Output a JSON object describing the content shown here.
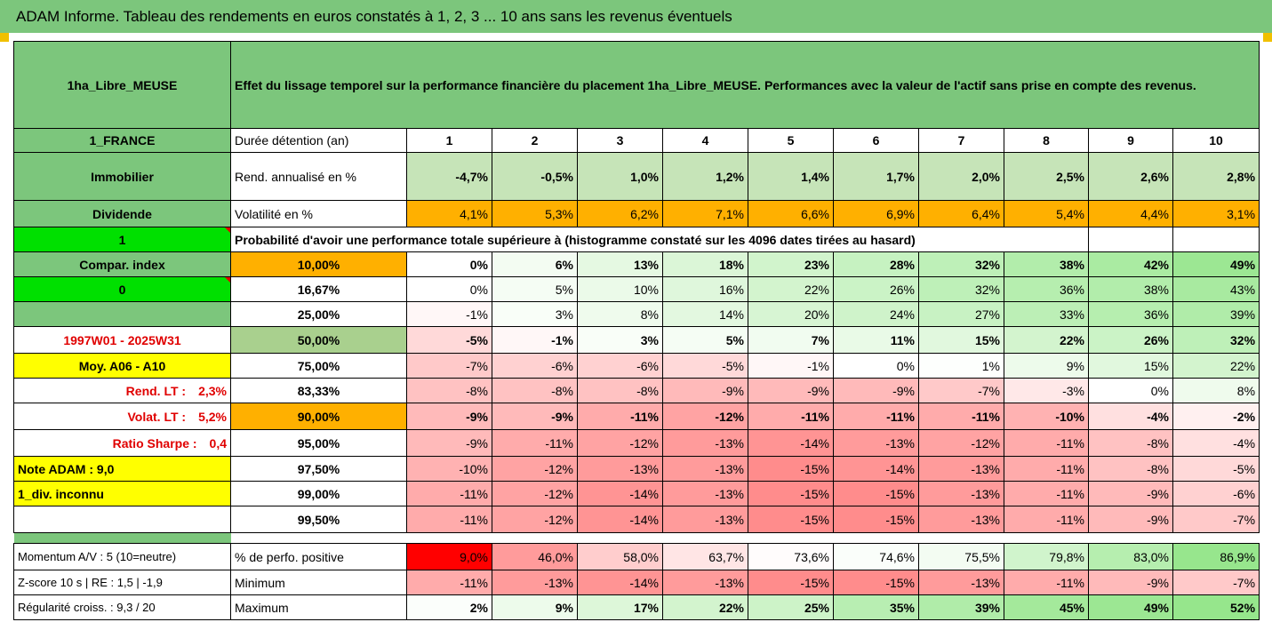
{
  "title": "ADAM Informe. Tableau des rendements en euros constatés à 1, 2, 3 ... 10 ans sans les revenus éventuels",
  "colors": {
    "header_green": "#7cc67c",
    "bright_green": "#00e000",
    "orange": "#ffb000",
    "yellow": "#ffff00",
    "red_text": "#e00000"
  },
  "header": {
    "asset": "1ha_Libre_MEUSE",
    "description": "Effet du lissage temporel sur la performance financière du placement 1ha_Libre_MEUSE. Performances avec la valeur de l'actif sans prise en compte des revenus."
  },
  "side": {
    "country": "1_FRANCE",
    "category": "Immobilier",
    "dividend_label": "Dividende",
    "dividend_value": "1",
    "compar_label": "Compar. index",
    "compar_value": "0",
    "period": "1997W01 - 2025W31",
    "moy": "Moy. A06 - A10",
    "rend_lt_label": "Rend. LT :",
    "rend_lt_value": "2,3%",
    "volat_lt_label": "Volat. LT :",
    "volat_lt_value": "5,2%",
    "sharpe_label": "Ratio Sharpe :",
    "sharpe_value": "0,4",
    "note": "Note ADAM : 9,0",
    "div": "1_div. inconnu"
  },
  "summary_rows": [
    {
      "label": "Durée détention (an)",
      "values": [
        "1",
        "2",
        "3",
        "4",
        "5",
        "6",
        "7",
        "8",
        "9",
        "10"
      ]
    },
    {
      "label": "Rend. annualisé en %",
      "values": [
        "-4,7%",
        "-0,5%",
        "1,0%",
        "1,2%",
        "1,4%",
        "1,7%",
        "2,0%",
        "2,5%",
        "2,6%",
        "2,8%"
      ]
    },
    {
      "label": "Volatilité en %",
      "values": [
        "4,1%",
        "5,3%",
        "6,2%",
        "7,1%",
        "6,6%",
        "6,9%",
        "6,4%",
        "5,4%",
        "4,4%",
        "3,1%"
      ]
    }
  ],
  "histogram_title": "Probabilité d'avoir une performance totale supérieure à (histogramme constaté sur les 4096 dates tirées au hasard)",
  "prob_rows": [
    {
      "pct": "10,00%",
      "values": [
        "0%",
        "6%",
        "13%",
        "18%",
        "23%",
        "28%",
        "32%",
        "38%",
        "42%",
        "49%"
      ]
    },
    {
      "pct": "16,67%",
      "values": [
        "0%",
        "5%",
        "10%",
        "16%",
        "22%",
        "26%",
        "32%",
        "36%",
        "38%",
        "43%"
      ]
    },
    {
      "pct": "25,00%",
      "values": [
        "-1%",
        "3%",
        "8%",
        "14%",
        "20%",
        "24%",
        "27%",
        "33%",
        "36%",
        "39%"
      ]
    },
    {
      "pct": "50,00%",
      "values": [
        "-5%",
        "-1%",
        "3%",
        "5%",
        "7%",
        "11%",
        "15%",
        "22%",
        "26%",
        "32%"
      ]
    },
    {
      "pct": "75,00%",
      "values": [
        "-7%",
        "-6%",
        "-6%",
        "-5%",
        "-1%",
        "0%",
        "1%",
        "9%",
        "15%",
        "22%"
      ]
    },
    {
      "pct": "83,33%",
      "values": [
        "-8%",
        "-8%",
        "-8%",
        "-9%",
        "-9%",
        "-9%",
        "-7%",
        "-3%",
        "0%",
        "8%"
      ]
    },
    {
      "pct": "90,00%",
      "values": [
        "-9%",
        "-9%",
        "-11%",
        "-12%",
        "-11%",
        "-11%",
        "-11%",
        "-10%",
        "-4%",
        "-2%"
      ]
    },
    {
      "pct": "95,00%",
      "values": [
        "-9%",
        "-11%",
        "-12%",
        "-13%",
        "-14%",
        "-13%",
        "-12%",
        "-11%",
        "-8%",
        "-4%"
      ]
    },
    {
      "pct": "97,50%",
      "values": [
        "-10%",
        "-12%",
        "-13%",
        "-13%",
        "-15%",
        "-14%",
        "-13%",
        "-11%",
        "-8%",
        "-5%"
      ]
    },
    {
      "pct": "99,00%",
      "values": [
        "-11%",
        "-12%",
        "-14%",
        "-13%",
        "-15%",
        "-15%",
        "-13%",
        "-11%",
        "-9%",
        "-6%"
      ]
    },
    {
      "pct": "99,50%",
      "values": [
        "-11%",
        "-12%",
        "-14%",
        "-13%",
        "-15%",
        "-15%",
        "-13%",
        "-11%",
        "-9%",
        "-7%"
      ]
    }
  ],
  "bottom_rows": [
    {
      "left": "Momentum A/V : 5 (10=neutre)",
      "label": "% de perfo. positive",
      "values": [
        "9,0%",
        "46,0%",
        "58,0%",
        "63,7%",
        "73,6%",
        "74,6%",
        "75,5%",
        "79,8%",
        "83,0%",
        "86,9%"
      ]
    },
    {
      "left": "Z-score 10 s  |  RE : 1,5  |  -1,9",
      "label": "Minimum",
      "values": [
        "-11%",
        "-13%",
        "-14%",
        "-13%",
        "-15%",
        "-15%",
        "-13%",
        "-11%",
        "-9%",
        "-7%"
      ]
    },
    {
      "left": "Régularité croiss. : 9,3 / 20",
      "label": "Maximum",
      "values": [
        "2%",
        "9%",
        "17%",
        "22%",
        "25%",
        "35%",
        "39%",
        "45%",
        "49%",
        "52%"
      ]
    }
  ]
}
